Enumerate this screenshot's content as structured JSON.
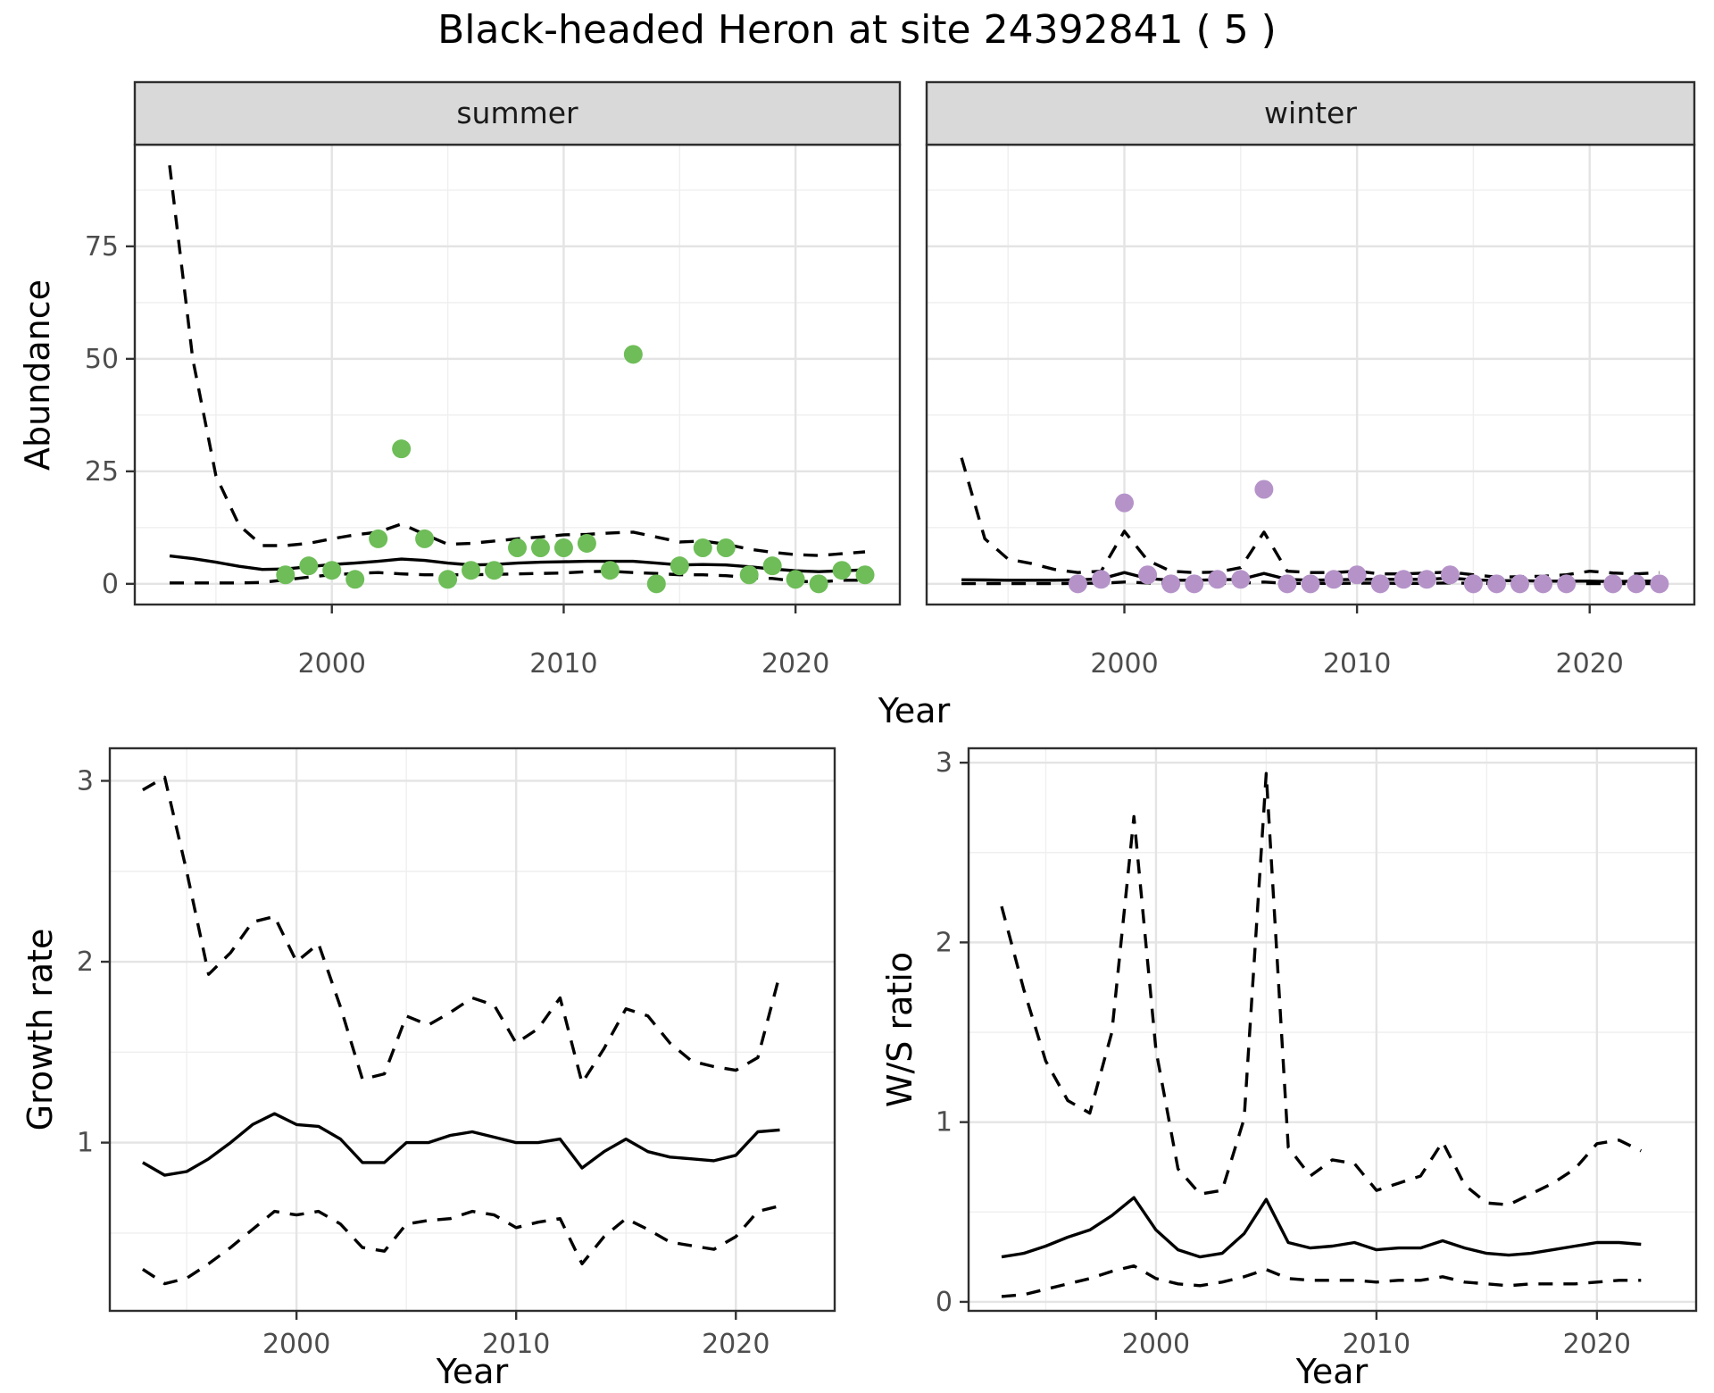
{
  "title": "Black-headed Heron at site 24392841 ( 5 )",
  "axes": {
    "top": {
      "x": "Year",
      "y": "Abundance"
    },
    "growth": {
      "x": "Year",
      "y": "Growth rate"
    },
    "ws": {
      "x": "Year",
      "y": "W/S ratio"
    }
  },
  "palette": {
    "summer_points": "#6EBD58",
    "winter_points": "#B593C9",
    "line": "#000000",
    "strip_bg": "#D9D9D9",
    "panel_border": "#2E2E2E",
    "grid_major": "#E4E4E4",
    "grid_minor": "#EFEFEF"
  },
  "chart_data": [
    {
      "id": "summer",
      "type": "line",
      "facet_label": "summer",
      "xlabel": "Year",
      "ylabel": "Abundance",
      "xlim": [
        1991.5,
        2024.5
      ],
      "ylim": [
        -4.6,
        97.6
      ],
      "xticks": [
        2000,
        2010,
        2020
      ],
      "yticks": [
        0,
        25,
        50,
        75
      ],
      "xminor": [
        1995,
        2005,
        2015
      ],
      "yminor": [
        12.5,
        37.5,
        62.5,
        87.5
      ],
      "series": [
        {
          "name": "upper-ci",
          "style": "dashed",
          "color": "#000000",
          "x": [
            1993,
            1994,
            1995,
            1996,
            1997,
            1998,
            1999,
            2000,
            2001,
            2002,
            2003,
            2004,
            2005,
            2006,
            2007,
            2008,
            2009,
            2010,
            2011,
            2012,
            2013,
            2014,
            2015,
            2016,
            2017,
            2018,
            2019,
            2020,
            2021,
            2022,
            2023
          ],
          "y": [
            93,
            50,
            24,
            13,
            8.5,
            8.5,
            9,
            10,
            10.9,
            11.5,
            13.3,
            11,
            8.8,
            9,
            9.5,
            10,
            10.4,
            10.9,
            11,
            11.3,
            11.5,
            10.4,
            9.3,
            9.5,
            8.8,
            7.7,
            7.0,
            6.5,
            6.3,
            6.7,
            7.1
          ]
        },
        {
          "name": "fit",
          "style": "solid",
          "color": "#000000",
          "x": [
            1993,
            1994,
            1995,
            1996,
            1997,
            1998,
            1999,
            2000,
            2001,
            2002,
            2003,
            2004,
            2005,
            2006,
            2007,
            2008,
            2009,
            2010,
            2011,
            2012,
            2013,
            2014,
            2015,
            2016,
            2017,
            2018,
            2019,
            2020,
            2021,
            2022,
            2023
          ],
          "y": [
            6.2,
            5.6,
            4.8,
            3.9,
            3.2,
            3.3,
            3.8,
            4.3,
            4.6,
            5.0,
            5.5,
            5.2,
            4.6,
            4.2,
            4.3,
            4.6,
            4.8,
            4.9,
            5.0,
            5.0,
            5.0,
            4.6,
            4.2,
            4.3,
            4.2,
            3.8,
            3.3,
            2.9,
            2.7,
            2.9,
            3.1
          ]
        },
        {
          "name": "lower-ci",
          "style": "dashed",
          "color": "#000000",
          "x": [
            1993,
            1994,
            1995,
            1996,
            1997,
            1998,
            1999,
            2000,
            2001,
            2002,
            2003,
            2004,
            2005,
            2006,
            2007,
            2008,
            2009,
            2010,
            2011,
            2012,
            2013,
            2014,
            2015,
            2016,
            2017,
            2018,
            2019,
            2020,
            2021,
            2022,
            2023
          ],
          "y": [
            0.2,
            0.2,
            0.2,
            0.2,
            0.3,
            0.9,
            1.5,
            2.0,
            2.3,
            2.5,
            2.2,
            2.0,
            2.0,
            2.0,
            2.1,
            2.2,
            2.3,
            2.4,
            2.7,
            2.8,
            2.5,
            2.3,
            2.0,
            2.0,
            1.8,
            1.4,
            1.2,
            0.6,
            0.4,
            0.8,
            0.8
          ]
        },
        {
          "name": "observed-counts",
          "style": "points",
          "color": "#6EBD58",
          "x": [
            1998,
            1999,
            2000,
            2001,
            2002,
            2003,
            2004,
            2005,
            2006,
            2007,
            2008,
            2009,
            2010,
            2011,
            2012,
            2013,
            2014,
            2015,
            2016,
            2017,
            2018,
            2019,
            2020,
            2021,
            2022,
            2023
          ],
          "y": [
            2,
            4,
            3,
            1,
            10,
            30,
            10,
            1,
            3,
            3,
            8,
            8,
            8,
            9,
            3,
            51,
            0,
            4,
            8,
            8,
            2,
            4,
            1,
            0,
            3,
            2
          ]
        }
      ]
    },
    {
      "id": "winter",
      "type": "line",
      "facet_label": "winter",
      "xlabel": "Year",
      "ylabel": "Abundance",
      "xlim": [
        1991.5,
        2024.5
      ],
      "ylim": [
        -4.6,
        97.6
      ],
      "xticks": [
        2000,
        2010,
        2020
      ],
      "yticks": [
        0,
        25,
        50,
        75
      ],
      "xminor": [
        1995,
        2005,
        2015
      ],
      "yminor": [
        12.5,
        37.5,
        62.5,
        87.5
      ],
      "series": [
        {
          "name": "upper-ci",
          "style": "dashed",
          "color": "#000000",
          "x": [
            1993,
            1994,
            1995,
            1996,
            1997,
            1998,
            1999,
            2000,
            2001,
            2002,
            2003,
            2004,
            2005,
            2006,
            2007,
            2008,
            2009,
            2010,
            2011,
            2012,
            2013,
            2014,
            2015,
            2016,
            2017,
            2018,
            2019,
            2020,
            2021,
            2022,
            2023
          ],
          "y": [
            28,
            10,
            5.5,
            4.5,
            3.2,
            2.5,
            2.8,
            11.7,
            5.2,
            2.8,
            2.5,
            2.6,
            3.6,
            11.5,
            2.8,
            2.5,
            2.5,
            2.8,
            2.2,
            2.2,
            2.4,
            2.6,
            2.0,
            1.5,
            1.6,
            1.7,
            2.0,
            2.8,
            2.4,
            2.2,
            2.5
          ]
        },
        {
          "name": "fit",
          "style": "solid",
          "color": "#000000",
          "x": [
            1993,
            1994,
            1995,
            1996,
            1997,
            1998,
            1999,
            2000,
            2001,
            2002,
            2003,
            2004,
            2005,
            2006,
            2007,
            2008,
            2009,
            2010,
            2011,
            2012,
            2013,
            2014,
            2015,
            2016,
            2017,
            2018,
            2019,
            2020,
            2021,
            2022,
            2023
          ],
          "y": [
            0.9,
            0.85,
            0.8,
            0.8,
            0.8,
            0.9,
            1.1,
            2.5,
            1.2,
            0.8,
            0.8,
            0.9,
            1.0,
            2.3,
            1.0,
            0.8,
            0.9,
            1.0,
            1.0,
            1.0,
            1.0,
            1.3,
            0.9,
            0.7,
            0.7,
            0.6,
            0.6,
            0.6,
            0.5,
            0.6,
            0.6
          ]
        },
        {
          "name": "lower-ci",
          "style": "dashed",
          "color": "#000000",
          "x": [
            1993,
            1994,
            1995,
            1996,
            1997,
            1998,
            1999,
            2000,
            2001,
            2002,
            2003,
            2004,
            2005,
            2006,
            2007,
            2008,
            2009,
            2010,
            2011,
            2012,
            2013,
            2014,
            2015,
            2016,
            2017,
            2018,
            2019,
            2020,
            2021,
            2022,
            2023
          ],
          "y": [
            0.05,
            0.05,
            0.05,
            0.05,
            0.05,
            0.1,
            0.15,
            0.4,
            0.2,
            0.1,
            0.1,
            0.1,
            0.15,
            0.4,
            0.1,
            0.1,
            0.1,
            0.15,
            0.15,
            0.1,
            0.1,
            0.2,
            0.1,
            0.05,
            0.05,
            0.05,
            0.05,
            0.05,
            0.05,
            0.05,
            0.05
          ]
        },
        {
          "name": "observed-counts",
          "style": "points",
          "color": "#B593C9",
          "x": [
            1998,
            1999,
            2000,
            2001,
            2002,
            2003,
            2004,
            2005,
            2006,
            2007,
            2008,
            2009,
            2010,
            2011,
            2012,
            2013,
            2014,
            2015,
            2016,
            2017,
            2018,
            2019,
            2021,
            2022,
            2023
          ],
          "y": [
            0,
            1,
            18,
            2,
            0,
            0,
            1,
            1,
            21,
            0,
            0,
            1,
            2,
            0,
            1,
            1,
            2,
            0,
            0,
            0,
            0,
            0,
            0,
            0,
            0
          ]
        }
      ]
    },
    {
      "id": "growth",
      "type": "line",
      "facet_label": null,
      "xlabel": "Year",
      "ylabel": "Growth rate",
      "xlim": [
        1991.5,
        2024.5
      ],
      "ylim": [
        0.07,
        3.18
      ],
      "xticks": [
        2000,
        2010,
        2020
      ],
      "yticks": [
        1,
        2,
        3
      ],
      "xminor": [
        1995,
        2005,
        2015
      ],
      "yminor": [
        0.5,
        1.5,
        2.5
      ],
      "series": [
        {
          "name": "upper-ci",
          "style": "dashed",
          "color": "#000000",
          "x": [
            1993,
            1994,
            1995,
            1996,
            1997,
            1998,
            1999,
            2000,
            2001,
            2002,
            2003,
            2004,
            2005,
            2006,
            2007,
            2008,
            2009,
            2010,
            2011,
            2012,
            2013,
            2014,
            2015,
            2016,
            2017,
            2018,
            2019,
            2020,
            2021,
            2022
          ],
          "y": [
            2.95,
            3.02,
            2.5,
            1.93,
            2.05,
            2.22,
            2.25,
            2.0,
            2.1,
            1.75,
            1.35,
            1.38,
            1.7,
            1.65,
            1.72,
            1.8,
            1.76,
            1.55,
            1.63,
            1.8,
            1.33,
            1.52,
            1.74,
            1.7,
            1.55,
            1.45,
            1.42,
            1.4,
            1.47,
            1.93
          ]
        },
        {
          "name": "fit",
          "style": "solid",
          "color": "#000000",
          "x": [
            1993,
            1994,
            1995,
            1996,
            1997,
            1998,
            1999,
            2000,
            2001,
            2002,
            2003,
            2004,
            2005,
            2006,
            2007,
            2008,
            2009,
            2010,
            2011,
            2012,
            2013,
            2014,
            2015,
            2016,
            2017,
            2018,
            2019,
            2020,
            2021,
            2022
          ],
          "y": [
            0.89,
            0.82,
            0.84,
            0.91,
            1.0,
            1.1,
            1.16,
            1.1,
            1.09,
            1.02,
            0.89,
            0.89,
            1.0,
            1.0,
            1.04,
            1.06,
            1.03,
            1.0,
            1.0,
            1.02,
            0.86,
            0.95,
            1.02,
            0.95,
            0.92,
            0.91,
            0.9,
            0.93,
            1.06,
            1.07
          ]
        },
        {
          "name": "lower-ci",
          "style": "dashed",
          "color": "#000000",
          "x": [
            1993,
            1994,
            1995,
            1996,
            1997,
            1998,
            1999,
            2000,
            2001,
            2002,
            2003,
            2004,
            2005,
            2006,
            2007,
            2008,
            2009,
            2010,
            2011,
            2012,
            2013,
            2014,
            2015,
            2016,
            2017,
            2018,
            2019,
            2020,
            2021,
            2022
          ],
          "y": [
            0.3,
            0.22,
            0.25,
            0.33,
            0.42,
            0.52,
            0.62,
            0.6,
            0.62,
            0.55,
            0.42,
            0.4,
            0.55,
            0.57,
            0.58,
            0.62,
            0.6,
            0.53,
            0.56,
            0.58,
            0.33,
            0.48,
            0.58,
            0.52,
            0.45,
            0.43,
            0.41,
            0.48,
            0.62,
            0.65
          ]
        }
      ]
    },
    {
      "id": "ws",
      "type": "line",
      "facet_label": null,
      "xlabel": "Year",
      "ylabel": "W/S ratio",
      "xlim": [
        1991.5,
        2024.5
      ],
      "ylim": [
        -0.05,
        3.08
      ],
      "xticks": [
        2000,
        2010,
        2020
      ],
      "yticks": [
        0,
        1,
        2,
        3
      ],
      "xminor": [
        1995,
        2005,
        2015
      ],
      "yminor": [
        0.5,
        1.5,
        2.5
      ],
      "series": [
        {
          "name": "upper-ci",
          "style": "dashed",
          "color": "#000000",
          "x": [
            1993,
            1994,
            1995,
            1996,
            1997,
            1998,
            1999,
            2000,
            2001,
            2002,
            2003,
            2004,
            2005,
            2006,
            2007,
            2008,
            2009,
            2010,
            2011,
            2012,
            2013,
            2014,
            2015,
            2016,
            2017,
            2018,
            2019,
            2020,
            2021,
            2022
          ],
          "y": [
            2.2,
            1.74,
            1.34,
            1.12,
            1.05,
            1.5,
            2.7,
            1.4,
            0.74,
            0.6,
            0.62,
            1.02,
            2.94,
            0.86,
            0.7,
            0.79,
            0.77,
            0.62,
            0.66,
            0.7,
            0.89,
            0.65,
            0.55,
            0.54,
            0.6,
            0.66,
            0.74,
            0.88,
            0.9,
            0.84
          ]
        },
        {
          "name": "fit",
          "style": "solid",
          "color": "#000000",
          "x": [
            1993,
            1994,
            1995,
            1996,
            1997,
            1998,
            1999,
            2000,
            2001,
            2002,
            2003,
            2004,
            2005,
            2006,
            2007,
            2008,
            2009,
            2010,
            2011,
            2012,
            2013,
            2014,
            2015,
            2016,
            2017,
            2018,
            2019,
            2020,
            2021,
            2022
          ],
          "y": [
            0.25,
            0.27,
            0.31,
            0.36,
            0.4,
            0.48,
            0.58,
            0.4,
            0.29,
            0.25,
            0.27,
            0.38,
            0.57,
            0.33,
            0.3,
            0.31,
            0.33,
            0.29,
            0.3,
            0.3,
            0.34,
            0.3,
            0.27,
            0.26,
            0.27,
            0.29,
            0.31,
            0.33,
            0.33,
            0.32
          ]
        },
        {
          "name": "lower-ci",
          "style": "dashed",
          "color": "#000000",
          "x": [
            1993,
            1994,
            1995,
            1996,
            1997,
            1998,
            1999,
            2000,
            2001,
            2002,
            2003,
            2004,
            2005,
            2006,
            2007,
            2008,
            2009,
            2010,
            2011,
            2012,
            2013,
            2014,
            2015,
            2016,
            2017,
            2018,
            2019,
            2020,
            2021,
            2022
          ],
          "y": [
            0.03,
            0.04,
            0.07,
            0.1,
            0.13,
            0.17,
            0.2,
            0.13,
            0.1,
            0.09,
            0.11,
            0.14,
            0.18,
            0.13,
            0.12,
            0.12,
            0.12,
            0.11,
            0.12,
            0.12,
            0.14,
            0.11,
            0.1,
            0.09,
            0.1,
            0.1,
            0.1,
            0.11,
            0.12,
            0.12
          ]
        }
      ]
    }
  ]
}
